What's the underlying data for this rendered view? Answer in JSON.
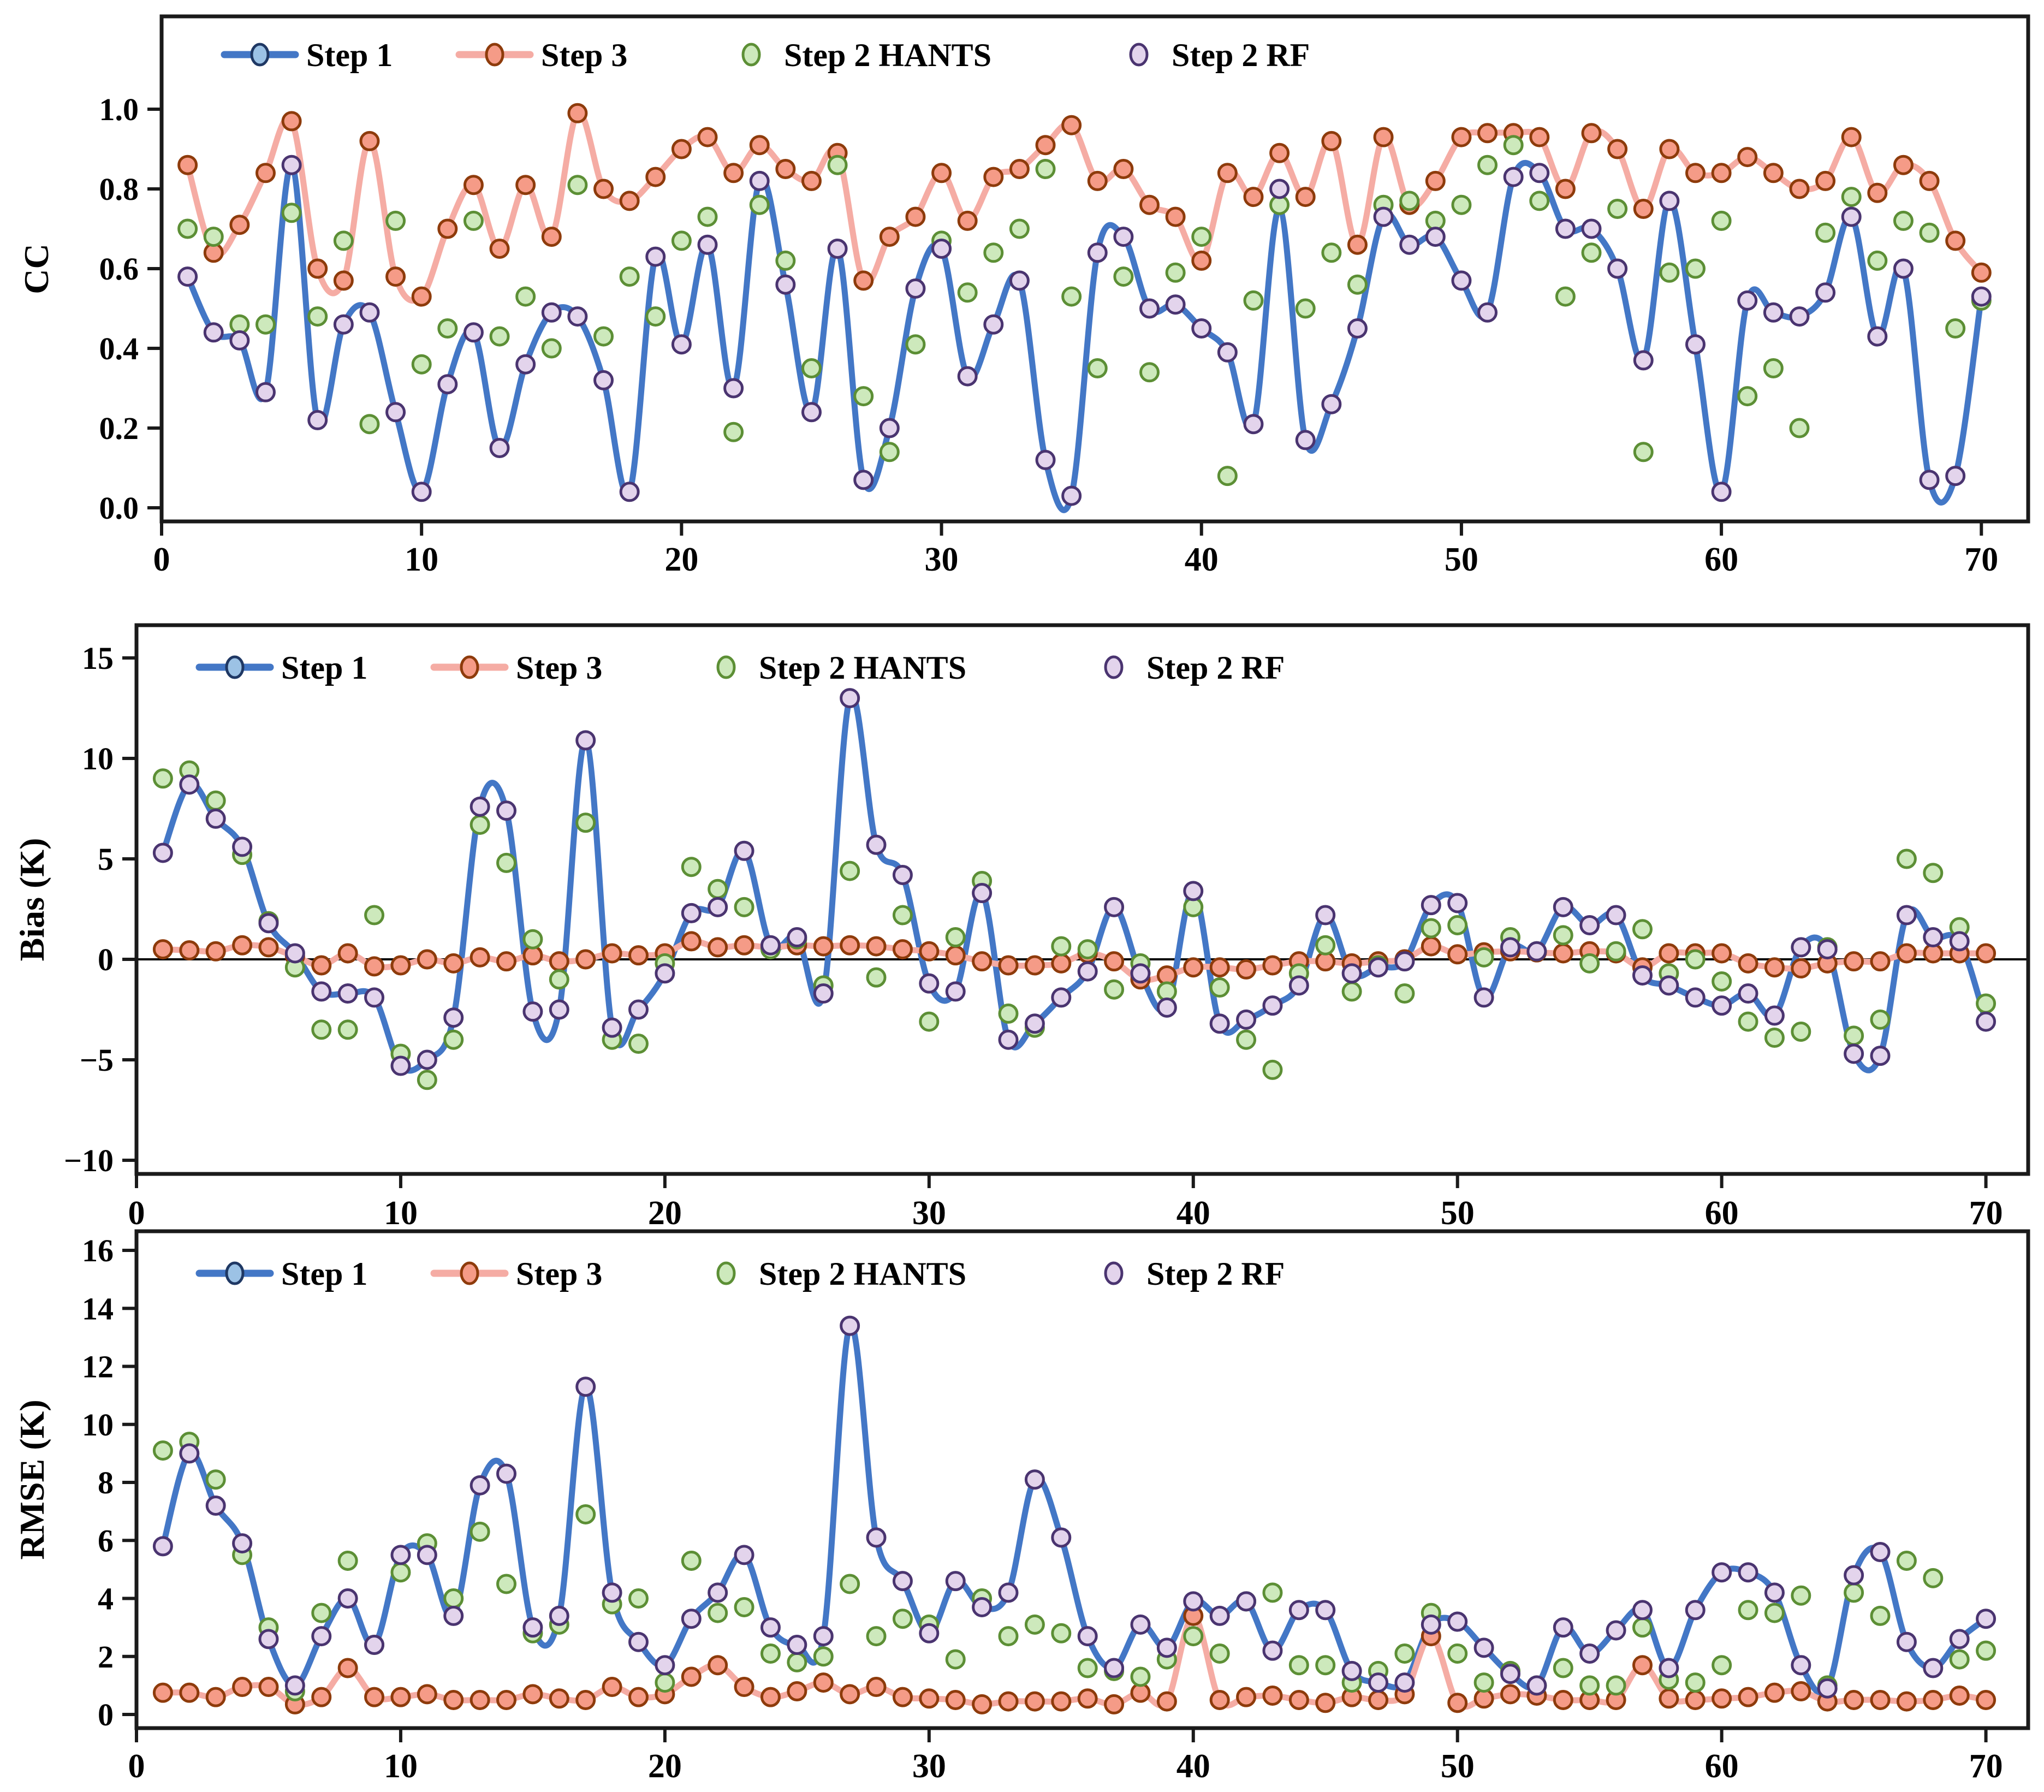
{
  "figure": {
    "background": "#ffffff",
    "frame_color": "#1a1a1a",
    "legend_labels": [
      "Step 1",
      "Step 3",
      "Step 2 HANTS",
      "Step 2 RF"
    ],
    "colors": {
      "step1_line": "#4377C6",
      "step1_legend_marker_fill": "#9CC2E5",
      "step1_legend_marker_stroke": "#1F3864",
      "step3_line": "#F5ACA4",
      "step3_marker_fill": "#F59B87",
      "step3_marker_stroke": "#8E3B0B",
      "hants_fill": "#CDE9BC",
      "hants_stroke": "#5C8F35",
      "rf_fill": "#E3D4EC",
      "rf_stroke": "#4A3470",
      "zero_line": "#000000"
    }
  },
  "chart_data": [
    {
      "type": "line",
      "title": "",
      "xlabel": "",
      "ylabel": "CC",
      "x_range": [
        1,
        70
      ],
      "x_note": "x values are consecutive integers 1..70 for every series",
      "ylim": [
        0,
        1.13
      ],
      "xlim": [
        0,
        71.8
      ],
      "xtick_values": [
        0,
        10,
        20,
        30,
        40,
        50,
        60,
        70
      ],
      "xtick_labels": [
        "0",
        "10",
        "20",
        "30",
        "40",
        "50",
        "60",
        "70"
      ],
      "ytick_values": [
        0,
        0.2,
        0.4,
        0.6,
        0.8,
        1.0
      ],
      "ytick_labels": [
        "0.0",
        "0.2",
        "0.4",
        "0.6",
        "0.8",
        "1.0"
      ],
      "grid": false,
      "zero_line": false,
      "legend_position": "top-left-inside",
      "series": [
        {
          "name": "Step 1",
          "kind": "line+markers",
          "values": [
            0.58,
            0.44,
            0.42,
            0.29,
            0.86,
            0.22,
            0.46,
            0.49,
            0.24,
            0.04,
            0.31,
            0.44,
            0.15,
            0.36,
            0.49,
            0.48,
            0.32,
            0.04,
            0.63,
            0.41,
            0.66,
            0.3,
            0.82,
            0.56,
            0.24,
            0.65,
            0.07,
            0.2,
            0.55,
            0.65,
            0.33,
            0.46,
            0.57,
            0.12,
            0.03,
            0.64,
            0.68,
            0.5,
            0.51,
            0.45,
            0.39,
            0.21,
            0.75,
            0.17,
            0.26,
            0.45,
            0.73,
            0.66,
            0.68,
            0.57,
            0.49,
            0.83,
            0.84,
            0.7,
            0.7,
            0.6,
            0.37,
            0.77,
            0.41,
            0.04,
            0.52,
            0.49,
            0.48,
            0.54,
            0.73,
            0.43,
            0.6,
            0.07,
            0.08,
            0.53
          ]
        },
        {
          "name": "Step 3",
          "kind": "line+markers",
          "values": [
            0.86,
            0.64,
            0.71,
            0.84,
            0.97,
            0.6,
            0.57,
            0.92,
            0.58,
            0.53,
            0.7,
            0.81,
            0.65,
            0.81,
            0.68,
            0.99,
            0.8,
            0.77,
            0.83,
            0.9,
            0.93,
            0.84,
            0.91,
            0.85,
            0.82,
            0.89,
            0.57,
            0.68,
            0.73,
            0.84,
            0.72,
            0.83,
            0.85,
            0.91,
            0.96,
            0.82,
            0.85,
            0.76,
            0.73,
            0.62,
            0.84,
            0.78,
            0.89,
            0.78,
            0.92,
            0.66,
            0.93,
            0.76,
            0.82,
            0.93,
            0.94,
            0.94,
            0.93,
            0.8,
            0.94,
            0.9,
            0.75,
            0.9,
            0.84,
            0.84,
            0.88,
            0.84,
            0.8,
            0.82,
            0.93,
            0.79,
            0.86,
            0.82,
            0.67,
            0.59
          ]
        },
        {
          "name": "Step 2 HANTS",
          "kind": "scatter",
          "values": [
            0.7,
            0.68,
            0.46,
            0.46,
            0.74,
            0.48,
            0.67,
            0.21,
            0.72,
            0.36,
            0.45,
            0.72,
            0.43,
            0.53,
            0.4,
            0.81,
            0.43,
            0.58,
            0.48,
            0.67,
            0.73,
            0.19,
            0.76,
            0.62,
            0.35,
            0.86,
            0.28,
            0.14,
            0.41,
            0.67,
            0.54,
            0.64,
            0.7,
            0.85,
            0.53,
            0.35,
            0.58,
            0.34,
            0.59,
            0.68,
            0.08,
            0.52,
            0.76,
            0.5,
            0.64,
            0.56,
            0.76,
            0.77,
            0.72,
            0.76,
            0.86,
            0.91,
            0.77,
            0.53,
            0.64,
            0.75,
            0.14,
            0.59,
            0.6,
            0.72,
            0.28,
            0.35,
            0.2,
            0.69,
            0.78,
            0.62,
            0.72,
            0.69,
            0.45,
            0.52
          ]
        },
        {
          "name": "Step 2 RF",
          "kind": "scatter",
          "values": [
            0.58,
            0.44,
            0.42,
            0.29,
            0.86,
            0.22,
            0.46,
            0.49,
            0.24,
            0.04,
            0.31,
            0.44,
            0.15,
            0.36,
            0.49,
            0.48,
            0.32,
            0.04,
            0.63,
            0.41,
            0.66,
            0.3,
            0.82,
            0.56,
            0.24,
            0.65,
            0.07,
            0.2,
            0.55,
            0.65,
            0.33,
            0.46,
            0.57,
            0.12,
            0.03,
            0.64,
            0.68,
            0.5,
            0.51,
            0.45,
            0.39,
            0.21,
            0.8,
            0.17,
            0.26,
            0.45,
            0.73,
            0.66,
            0.68,
            0.57,
            0.49,
            0.83,
            0.84,
            0.7,
            0.7,
            0.6,
            0.37,
            0.77,
            0.41,
            0.04,
            0.52,
            0.49,
            0.48,
            0.54,
            0.73,
            0.43,
            0.6,
            0.07,
            0.08,
            0.53
          ]
        }
      ]
    },
    {
      "type": "line",
      "title": "",
      "xlabel": "",
      "ylabel": "Bias (K)",
      "x_range": [
        1,
        70
      ],
      "ylim": [
        -10,
        15
      ],
      "xlim": [
        0,
        71.6
      ],
      "xtick_values": [
        0,
        10,
        20,
        30,
        40,
        50,
        60,
        70
      ],
      "xtick_labels": [
        "0",
        "10",
        "20",
        "30",
        "40",
        "50",
        "60",
        "70"
      ],
      "ytick_values": [
        15,
        10,
        5,
        0,
        -5,
        -10
      ],
      "ytick_labels": [
        "15",
        "10",
        "5",
        "0",
        "−5",
        "−10"
      ],
      "grid": false,
      "zero_line": true,
      "legend_position": "top-left-inside",
      "series": [
        {
          "name": "Step 1",
          "kind": "line+markers",
          "values": [
            5.3,
            8.7,
            7.0,
            5.6,
            1.8,
            0.3,
            -1.6,
            -1.7,
            -1.9,
            -5.3,
            -5.0,
            -2.9,
            7.6,
            7.4,
            -2.6,
            -2.5,
            10.9,
            -3.4,
            -2.5,
            -0.7,
            2.3,
            2.6,
            5.4,
            0.7,
            1.1,
            -1.7,
            13.0,
            5.7,
            4.2,
            -1.2,
            -1.6,
            3.3,
            -4.0,
            -3.2,
            -1.9,
            -0.6,
            2.6,
            -0.7,
            -2.4,
            3.4,
            -3.2,
            -3.0,
            -2.3,
            -1.3,
            2.2,
            -0.7,
            -0.4,
            -0.1,
            2.7,
            2.8,
            -1.9,
            0.6,
            0.4,
            2.6,
            1.7,
            2.2,
            -0.8,
            -1.3,
            -1.9,
            -2.3,
            -1.7,
            -2.8,
            0.6,
            0.5,
            -4.7,
            -4.8,
            2.2,
            1.1,
            0.9,
            -3.1
          ]
        },
        {
          "name": "Step 3",
          "kind": "line+markers",
          "values": [
            0.5,
            0.45,
            0.4,
            0.7,
            0.6,
            0.15,
            -0.3,
            0.3,
            -0.35,
            -0.3,
            0.0,
            -0.2,
            0.1,
            -0.1,
            0.2,
            -0.1,
            0.0,
            0.3,
            0.2,
            0.3,
            0.9,
            0.6,
            0.7,
            0.6,
            0.7,
            0.65,
            0.7,
            0.65,
            0.5,
            0.4,
            0.2,
            -0.1,
            -0.3,
            -0.3,
            -0.2,
            0.3,
            -0.1,
            -1.0,
            -0.8,
            -0.4,
            -0.4,
            -0.5,
            -0.3,
            -0.1,
            -0.1,
            -0.2,
            -0.1,
            0.0,
            0.65,
            0.25,
            0.35,
            0.4,
            0.35,
            0.3,
            0.4,
            0.3,
            -0.4,
            0.3,
            0.3,
            0.3,
            -0.2,
            -0.4,
            -0.45,
            -0.2,
            -0.1,
            -0.1,
            0.3,
            0.3,
            0.3,
            0.3
          ]
        },
        {
          "name": "Step 2 HANTS",
          "kind": "scatter",
          "values": [
            9.0,
            9.4,
            7.9,
            5.2,
            1.9,
            -0.4,
            -3.5,
            -3.5,
            2.2,
            -4.7,
            -6.0,
            -4.0,
            6.7,
            4.8,
            1.0,
            -1.0,
            6.8,
            -4.0,
            -4.2,
            -0.2,
            4.6,
            3.5,
            2.6,
            0.5,
            1.0,
            -1.3,
            4.4,
            -0.9,
            2.2,
            -3.1,
            1.1,
            3.9,
            -2.7,
            -3.4,
            0.65,
            0.5,
            -1.5,
            -0.2,
            -1.6,
            2.6,
            -1.4,
            -4.0,
            -5.5,
            -0.7,
            0.7,
            -1.6,
            -0.3,
            -1.7,
            1.55,
            1.7,
            0.1,
            1.1,
            0.4,
            1.2,
            -0.2,
            0.4,
            1.5,
            -0.7,
            0.0,
            -1.1,
            -3.1,
            -3.9,
            -3.6,
            0.6,
            -3.8,
            -3.0,
            5.0,
            4.3,
            1.6,
            -2.2
          ]
        },
        {
          "name": "Step 2 RF",
          "kind": "scatter",
          "values": [
            5.3,
            8.7,
            7.0,
            5.6,
            1.8,
            0.3,
            -1.6,
            -1.7,
            -1.9,
            -5.3,
            -5.0,
            -2.9,
            7.6,
            7.4,
            -2.6,
            -2.5,
            10.9,
            -3.4,
            -2.5,
            -0.7,
            2.3,
            2.6,
            5.4,
            0.7,
            1.1,
            -1.7,
            13.0,
            5.7,
            4.2,
            -1.2,
            -1.6,
            3.3,
            -4.0,
            -3.2,
            -1.9,
            -0.6,
            2.6,
            -0.7,
            -2.4,
            3.4,
            -3.2,
            -3.0,
            -2.3,
            -1.3,
            2.2,
            -0.7,
            -0.4,
            -0.1,
            2.7,
            2.8,
            -1.9,
            0.6,
            0.4,
            2.6,
            1.7,
            2.2,
            -0.8,
            -1.3,
            -1.9,
            -2.3,
            -1.7,
            -2.8,
            0.6,
            0.5,
            -4.7,
            -4.8,
            2.2,
            1.1,
            0.9,
            -3.1
          ]
        }
      ]
    },
    {
      "type": "line",
      "title": "",
      "xlabel": "",
      "ylabel": "RMSE (K)",
      "x_range": [
        1,
        70
      ],
      "ylim": [
        0,
        16
      ],
      "xlim": [
        0,
        71.6
      ],
      "xtick_values": [
        0,
        10,
        20,
        30,
        40,
        50,
        60,
        70
      ],
      "xtick_labels": [
        "0",
        "10",
        "20",
        "30",
        "40",
        "50",
        "60",
        "70"
      ],
      "ytick_values": [
        16,
        14,
        12,
        10,
        8,
        6,
        4,
        2,
        0
      ],
      "ytick_labels": [
        "16",
        "14",
        "12",
        "10",
        "8",
        "6",
        "4",
        "2",
        "0"
      ],
      "grid": false,
      "zero_line": false,
      "legend_position": "top-left-inside",
      "series": [
        {
          "name": "Step 1",
          "kind": "line+markers",
          "values": [
            5.8,
            9.0,
            7.2,
            5.9,
            2.6,
            1.0,
            2.7,
            4.0,
            2.4,
            5.5,
            5.5,
            3.4,
            7.9,
            8.3,
            3.0,
            3.4,
            11.3,
            4.2,
            2.5,
            1.7,
            3.3,
            4.2,
            5.5,
            3.0,
            2.4,
            2.7,
            13.4,
            6.1,
            4.6,
            2.8,
            4.6,
            3.7,
            4.2,
            8.1,
            6.1,
            2.7,
            1.6,
            3.1,
            2.3,
            3.9,
            3.4,
            3.9,
            2.2,
            3.6,
            3.6,
            1.5,
            1.1,
            1.1,
            3.1,
            3.2,
            2.3,
            1.4,
            1.0,
            3.0,
            2.1,
            2.9,
            3.6,
            1.6,
            3.6,
            4.9,
            4.9,
            4.2,
            1.7,
            0.9,
            4.8,
            5.6,
            2.5,
            1.6,
            2.6,
            3.3
          ]
        },
        {
          "name": "Step 3",
          "kind": "line+markers",
          "values": [
            0.75,
            0.75,
            0.6,
            0.95,
            0.95,
            0.35,
            0.6,
            1.6,
            0.6,
            0.6,
            0.7,
            0.5,
            0.5,
            0.5,
            0.7,
            0.55,
            0.5,
            0.95,
            0.6,
            0.7,
            1.3,
            1.7,
            0.95,
            0.6,
            0.8,
            1.1,
            0.7,
            0.95,
            0.6,
            0.55,
            0.5,
            0.35,
            0.45,
            0.45,
            0.45,
            0.55,
            0.35,
            0.75,
            0.45,
            3.4,
            0.5,
            0.6,
            0.65,
            0.5,
            0.4,
            0.6,
            0.5,
            0.7,
            2.7,
            0.4,
            0.55,
            0.7,
            0.65,
            0.5,
            0.5,
            0.5,
            1.7,
            0.55,
            0.5,
            0.55,
            0.6,
            0.75,
            0.8,
            0.45,
            0.5,
            0.5,
            0.45,
            0.5,
            0.65,
            0.5
          ]
        },
        {
          "name": "Step 2 HANTS",
          "kind": "scatter",
          "values": [
            9.1,
            9.4,
            8.1,
            5.5,
            3.0,
            0.8,
            3.5,
            5.3,
            2.4,
            4.9,
            5.9,
            4.0,
            6.3,
            4.5,
            2.8,
            3.1,
            6.9,
            3.8,
            4.0,
            1.1,
            5.3,
            3.5,
            3.7,
            2.1,
            1.8,
            2.0,
            4.5,
            2.7,
            3.3,
            3.1,
            1.9,
            4.0,
            2.7,
            3.1,
            2.8,
            1.6,
            1.5,
            1.3,
            1.9,
            2.7,
            2.1,
            3.9,
            4.2,
            1.7,
            1.7,
            1.1,
            1.5,
            2.1,
            3.5,
            2.1,
            1.1,
            1.5,
            1.0,
            1.6,
            1.0,
            1.0,
            3.0,
            1.2,
            1.1,
            1.7,
            3.6,
            3.5,
            4.1,
            1.0,
            4.2,
            3.4,
            5.3,
            4.7,
            1.9,
            2.2
          ]
        },
        {
          "name": "Step 2 RF",
          "kind": "scatter",
          "values": [
            5.8,
            9.0,
            7.2,
            5.9,
            2.6,
            1.0,
            2.7,
            4.0,
            2.4,
            5.5,
            5.5,
            3.4,
            7.9,
            8.3,
            3.0,
            3.4,
            11.3,
            4.2,
            2.5,
            1.7,
            3.3,
            4.2,
            5.5,
            3.0,
            2.4,
            2.7,
            13.4,
            6.1,
            4.6,
            2.8,
            4.6,
            3.7,
            4.2,
            8.1,
            6.1,
            2.7,
            1.6,
            3.1,
            2.3,
            3.9,
            3.4,
            3.9,
            2.2,
            3.6,
            3.6,
            1.5,
            1.1,
            1.1,
            3.1,
            3.2,
            2.3,
            1.4,
            1.0,
            3.0,
            2.1,
            2.9,
            3.6,
            1.6,
            3.6,
            4.9,
            4.9,
            4.2,
            1.7,
            0.9,
            4.8,
            5.6,
            2.5,
            1.6,
            2.6,
            3.3
          ]
        }
      ]
    }
  ]
}
